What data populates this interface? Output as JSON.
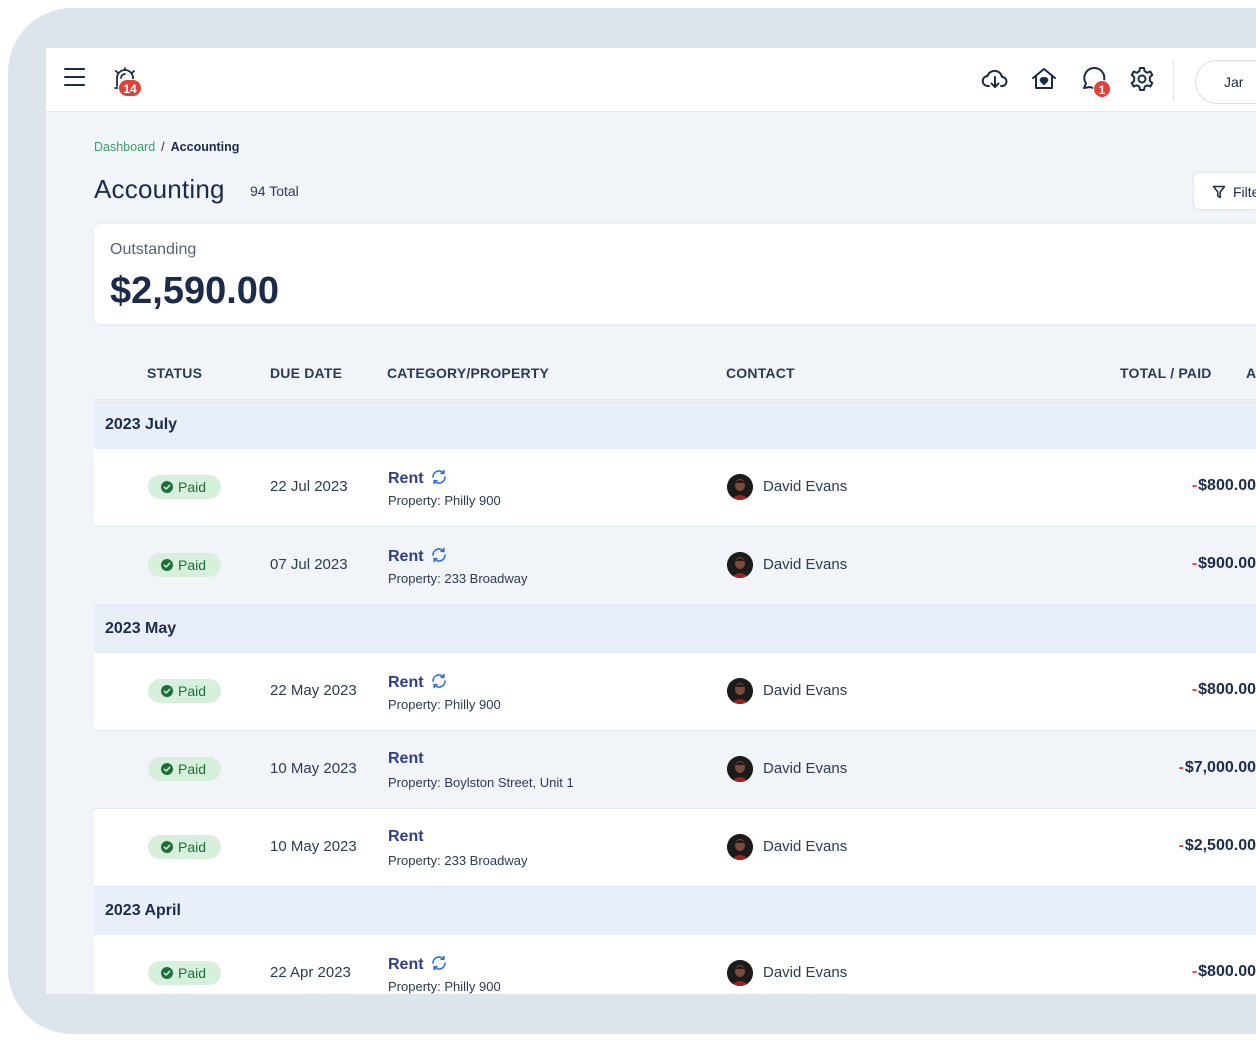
{
  "topbar": {
    "menu_icon": "hamburger-menu-icon",
    "alarm_badge": "14",
    "messages_badge": "1",
    "user_name_partial": "Jar"
  },
  "breadcrumb": {
    "root": "Dashboard",
    "separator": "/",
    "current": "Accounting"
  },
  "header": {
    "title": "Accounting",
    "total": "94 Total",
    "filter_label": "Filte"
  },
  "outstanding": {
    "label": "Outstanding",
    "amount": "$2,590.00"
  },
  "table": {
    "columns": [
      "STATUS",
      "DUE DATE",
      "CATEGORY/PROPERTY",
      "CONTACT",
      "TOTAL / PAID",
      "A"
    ],
    "groups": [
      {
        "label": "2023 July",
        "rows": [
          {
            "status": "Paid",
            "due": "22 Jul 2023",
            "category": "Rent",
            "recurring": true,
            "property": "Property: Philly 900",
            "contact": "David Evans",
            "sign": "-",
            "amount": "$800.00"
          },
          {
            "status": "Paid",
            "due": "07 Jul 2023",
            "category": "Rent",
            "recurring": true,
            "property": "Property: 233 Broadway",
            "contact": "David Evans",
            "sign": "-",
            "amount": "$900.00"
          }
        ]
      },
      {
        "label": "2023 May",
        "rows": [
          {
            "status": "Paid",
            "due": "22 May 2023",
            "category": "Rent",
            "recurring": true,
            "property": "Property: Philly 900",
            "contact": "David Evans",
            "sign": "-",
            "amount": "$800.00"
          },
          {
            "status": "Paid",
            "due": "10 May 2023",
            "category": "Rent",
            "recurring": false,
            "property": "Property: Boylston Street, Unit 1",
            "contact": "David Evans",
            "sign": "-",
            "amount": "$7,000.00"
          },
          {
            "status": "Paid",
            "due": "10 May 2023",
            "category": "Rent",
            "recurring": false,
            "property": "Property: 233 Broadway",
            "contact": "David Evans",
            "sign": "-",
            "amount": "$2,500.00"
          }
        ]
      },
      {
        "label": "2023 April",
        "rows": [
          {
            "status": "Paid",
            "due": "22 Apr 2023",
            "category": "Rent",
            "recurring": true,
            "property": "Property: Philly 900",
            "contact": "David Evans",
            "sign": "-",
            "amount": "$800.00"
          }
        ]
      }
    ]
  },
  "colors": {
    "accent": "#2e3e8c",
    "paid_bg": "#d6f0dc",
    "paid_text": "#1e6e3a",
    "badge": "#e0413a",
    "link": "#38a169"
  }
}
